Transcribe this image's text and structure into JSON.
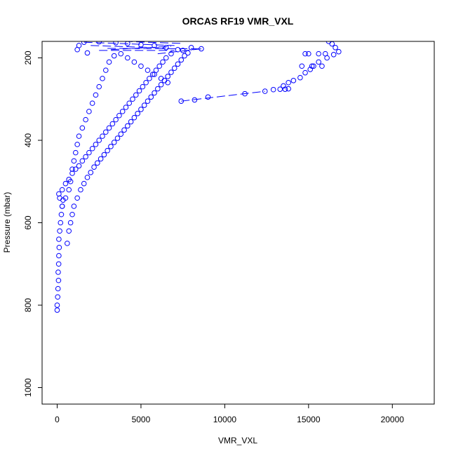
{
  "chart_data": {
    "type": "scatter",
    "title": "ORCAS RF19 VMR_VXL",
    "xlabel": "VMR_VXL",
    "ylabel": "Pressure (mbar)",
    "xlim": [
      -900,
      22500
    ],
    "ylim": [
      1040,
      160
    ],
    "y_reversed": true,
    "xticks": [
      0,
      5000,
      10000,
      15000,
      20000
    ],
    "yticks": [
      200,
      400,
      600,
      800,
      1000
    ],
    "xtick_labels": [
      "0",
      "5000",
      "10000",
      "15000",
      "20000"
    ],
    "ytick_labels": [
      "200",
      "400",
      "600",
      "800",
      "1000"
    ],
    "grid": false,
    "marker": "open-circle",
    "series": [
      {
        "color": "#0000ff",
        "points": [
          [
            0,
            812
          ],
          [
            0,
            800
          ],
          [
            30,
            780
          ],
          [
            50,
            760
          ],
          [
            80,
            740
          ],
          [
            60,
            720
          ],
          [
            90,
            700
          ],
          [
            100,
            680
          ],
          [
            120,
            660
          ],
          [
            100,
            640
          ],
          [
            150,
            620
          ],
          [
            200,
            600
          ],
          [
            250,
            580
          ],
          [
            300,
            560
          ],
          [
            350,
            545
          ],
          [
            150,
            540
          ],
          [
            100,
            530
          ],
          [
            300,
            520
          ],
          [
            500,
            505
          ],
          [
            700,
            495
          ],
          [
            900,
            480
          ],
          [
            1100,
            470
          ],
          [
            1300,
            462
          ],
          [
            1500,
            450
          ],
          [
            1700,
            440
          ],
          [
            1900,
            430
          ],
          [
            2100,
            420
          ],
          [
            2300,
            410
          ],
          [
            2500,
            400
          ],
          [
            2700,
            390
          ],
          [
            2900,
            380
          ],
          [
            3100,
            370
          ],
          [
            3300,
            360
          ],
          [
            3500,
            350
          ],
          [
            3700,
            340
          ],
          [
            3900,
            330
          ],
          [
            4100,
            320
          ],
          [
            4300,
            310
          ],
          [
            4500,
            300
          ],
          [
            4700,
            290
          ],
          [
            4900,
            280
          ],
          [
            5100,
            270
          ],
          [
            5300,
            260
          ],
          [
            5500,
            250
          ],
          [
            5700,
            240
          ],
          [
            5900,
            230
          ],
          [
            6100,
            220
          ],
          [
            6300,
            210
          ],
          [
            6500,
            200
          ],
          [
            6800,
            190
          ],
          [
            7200,
            180
          ],
          [
            8000,
            175
          ],
          [
            8600,
            178
          ],
          [
            7500,
            182
          ],
          [
            6500,
            175
          ],
          [
            5800,
            170
          ],
          [
            5000,
            168
          ],
          [
            4200,
            165
          ],
          [
            3500,
            163
          ],
          [
            2500,
            161
          ],
          [
            1600,
            162
          ],
          [
            1300,
            170
          ],
          [
            1200,
            180
          ],
          [
            1800,
            188
          ],
          [
            600,
            650
          ],
          [
            700,
            620
          ],
          [
            800,
            600
          ],
          [
            900,
            580
          ],
          [
            1000,
            560
          ],
          [
            1200,
            540
          ],
          [
            1400,
            520
          ],
          [
            1600,
            505
          ],
          [
            1800,
            490
          ],
          [
            2000,
            478
          ],
          [
            2200,
            465
          ],
          [
            2400,
            455
          ],
          [
            2600,
            445
          ],
          [
            2800,
            435
          ],
          [
            3000,
            425
          ],
          [
            3200,
            415
          ],
          [
            3400,
            405
          ],
          [
            3600,
            395
          ],
          [
            3800,
            385
          ],
          [
            4000,
            375
          ],
          [
            4200,
            365
          ],
          [
            4400,
            355
          ],
          [
            4600,
            345
          ],
          [
            4800,
            335
          ],
          [
            5000,
            325
          ],
          [
            5200,
            315
          ],
          [
            5400,
            305
          ],
          [
            5600,
            295
          ],
          [
            5800,
            285
          ],
          [
            6000,
            275
          ],
          [
            6200,
            265
          ],
          [
            6400,
            255
          ],
          [
            6600,
            245
          ],
          [
            6800,
            235
          ],
          [
            7000,
            225
          ],
          [
            7200,
            215
          ],
          [
            7400,
            205
          ],
          [
            7600,
            195
          ],
          [
            7800,
            188
          ],
          [
            300,
            560
          ],
          [
            500,
            540
          ],
          [
            700,
            520
          ],
          [
            800,
            500
          ],
          [
            900,
            470
          ],
          [
            1000,
            450
          ],
          [
            1100,
            430
          ],
          [
            1200,
            410
          ],
          [
            1300,
            390
          ],
          [
            1500,
            370
          ],
          [
            1700,
            350
          ],
          [
            1900,
            330
          ],
          [
            2100,
            310
          ],
          [
            2300,
            290
          ],
          [
            2500,
            270
          ],
          [
            2700,
            250
          ],
          [
            2900,
            230
          ],
          [
            3100,
            210
          ],
          [
            3400,
            195
          ],
          [
            3800,
            190
          ],
          [
            4200,
            200
          ],
          [
            4600,
            210
          ],
          [
            5000,
            220
          ],
          [
            5400,
            230
          ],
          [
            5800,
            240
          ],
          [
            6200,
            250
          ],
          [
            6600,
            260
          ],
          [
            7400,
            305
          ],
          [
            8200,
            302
          ],
          [
            9000,
            295
          ],
          [
            11200,
            287
          ],
          [
            12400,
            281
          ],
          [
            12900,
            277
          ],
          [
            13300,
            276
          ],
          [
            13600,
            276
          ],
          [
            13800,
            275
          ],
          [
            13500,
            268
          ],
          [
            13800,
            260
          ],
          [
            14100,
            255
          ],
          [
            14500,
            248
          ],
          [
            14800,
            236
          ],
          [
            15100,
            228
          ],
          [
            15300,
            220
          ],
          [
            15600,
            210
          ],
          [
            16100,
            200
          ],
          [
            16500,
            192
          ],
          [
            16800,
            185
          ],
          [
            16600,
            175
          ],
          [
            16400,
            166
          ],
          [
            16200,
            160
          ],
          [
            15000,
            190
          ],
          [
            14800,
            190
          ],
          [
            14600,
            220
          ],
          [
            15200,
            220
          ],
          [
            15800,
            220
          ],
          [
            15600,
            190
          ],
          [
            16000,
            190
          ]
        ]
      }
    ],
    "segments": [
      [
        [
          1600,
          162
        ],
        [
          7000,
          170
        ]
      ],
      [
        [
          2000,
          170
        ],
        [
          6500,
          176
        ]
      ],
      [
        [
          2500,
          182
        ],
        [
          7000,
          182
        ]
      ],
      [
        [
          3000,
          177
        ],
        [
          8600,
          178
        ]
      ],
      [
        [
          4000,
          160
        ],
        [
          7500,
          165
        ]
      ],
      [
        [
          7400,
          305
        ],
        [
          12400,
          281
        ]
      ],
      [
        [
          8600,
          178
        ],
        [
          6000,
          190
        ]
      ],
      [
        [
          3200,
          180
        ],
        [
          6800,
          172
        ]
      ]
    ]
  }
}
